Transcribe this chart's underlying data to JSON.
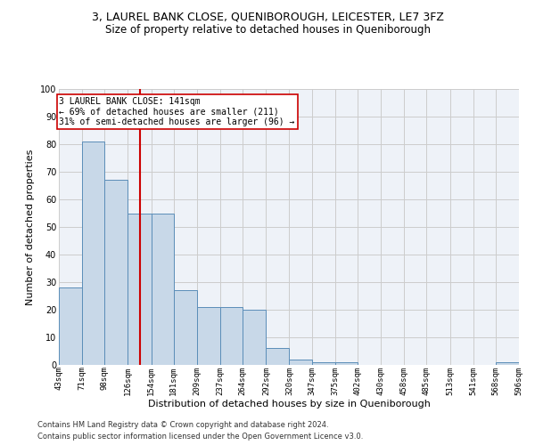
{
  "title1": "3, LAUREL BANK CLOSE, QUENIBOROUGH, LEICESTER, LE7 3FZ",
  "title2": "Size of property relative to detached houses in Queniborough",
  "xlabel": "Distribution of detached houses by size in Queniborough",
  "ylabel": "Number of detached properties",
  "footnote1": "Contains HM Land Registry data © Crown copyright and database right 2024.",
  "footnote2": "Contains public sector information licensed under the Open Government Licence v3.0.",
  "annotation_line1": "3 LAUREL BANK CLOSE: 141sqm",
  "annotation_line2": "← 69% of detached houses are smaller (211)",
  "annotation_line3": "31% of semi-detached houses are larger (96) →",
  "property_size": 141,
  "bar_color": "#c8d8e8",
  "bar_edge_color": "#5b8db8",
  "red_line_color": "#cc0000",
  "annotation_box_edge_color": "#cc0000",
  "bins": [
    43,
    71,
    98,
    126,
    154,
    181,
    209,
    237,
    264,
    292,
    320,
    347,
    375,
    402,
    430,
    458,
    485,
    513,
    541,
    568,
    596
  ],
  "counts": [
    28,
    81,
    67,
    55,
    55,
    27,
    21,
    21,
    20,
    6,
    2,
    1,
    1,
    0,
    0,
    0,
    0,
    0,
    0,
    1
  ],
  "ylim": [
    0,
    100
  ],
  "yticks": [
    0,
    10,
    20,
    30,
    40,
    50,
    60,
    70,
    80,
    90,
    100
  ],
  "grid_color": "#cccccc",
  "bg_color": "#eef2f8",
  "title1_fontsize": 9,
  "title2_fontsize": 8.5,
  "ylabel_fontsize": 8,
  "xlabel_fontsize": 8,
  "tick_fontsize": 6.5,
  "footnote_fontsize": 6,
  "ann_fontsize": 7
}
